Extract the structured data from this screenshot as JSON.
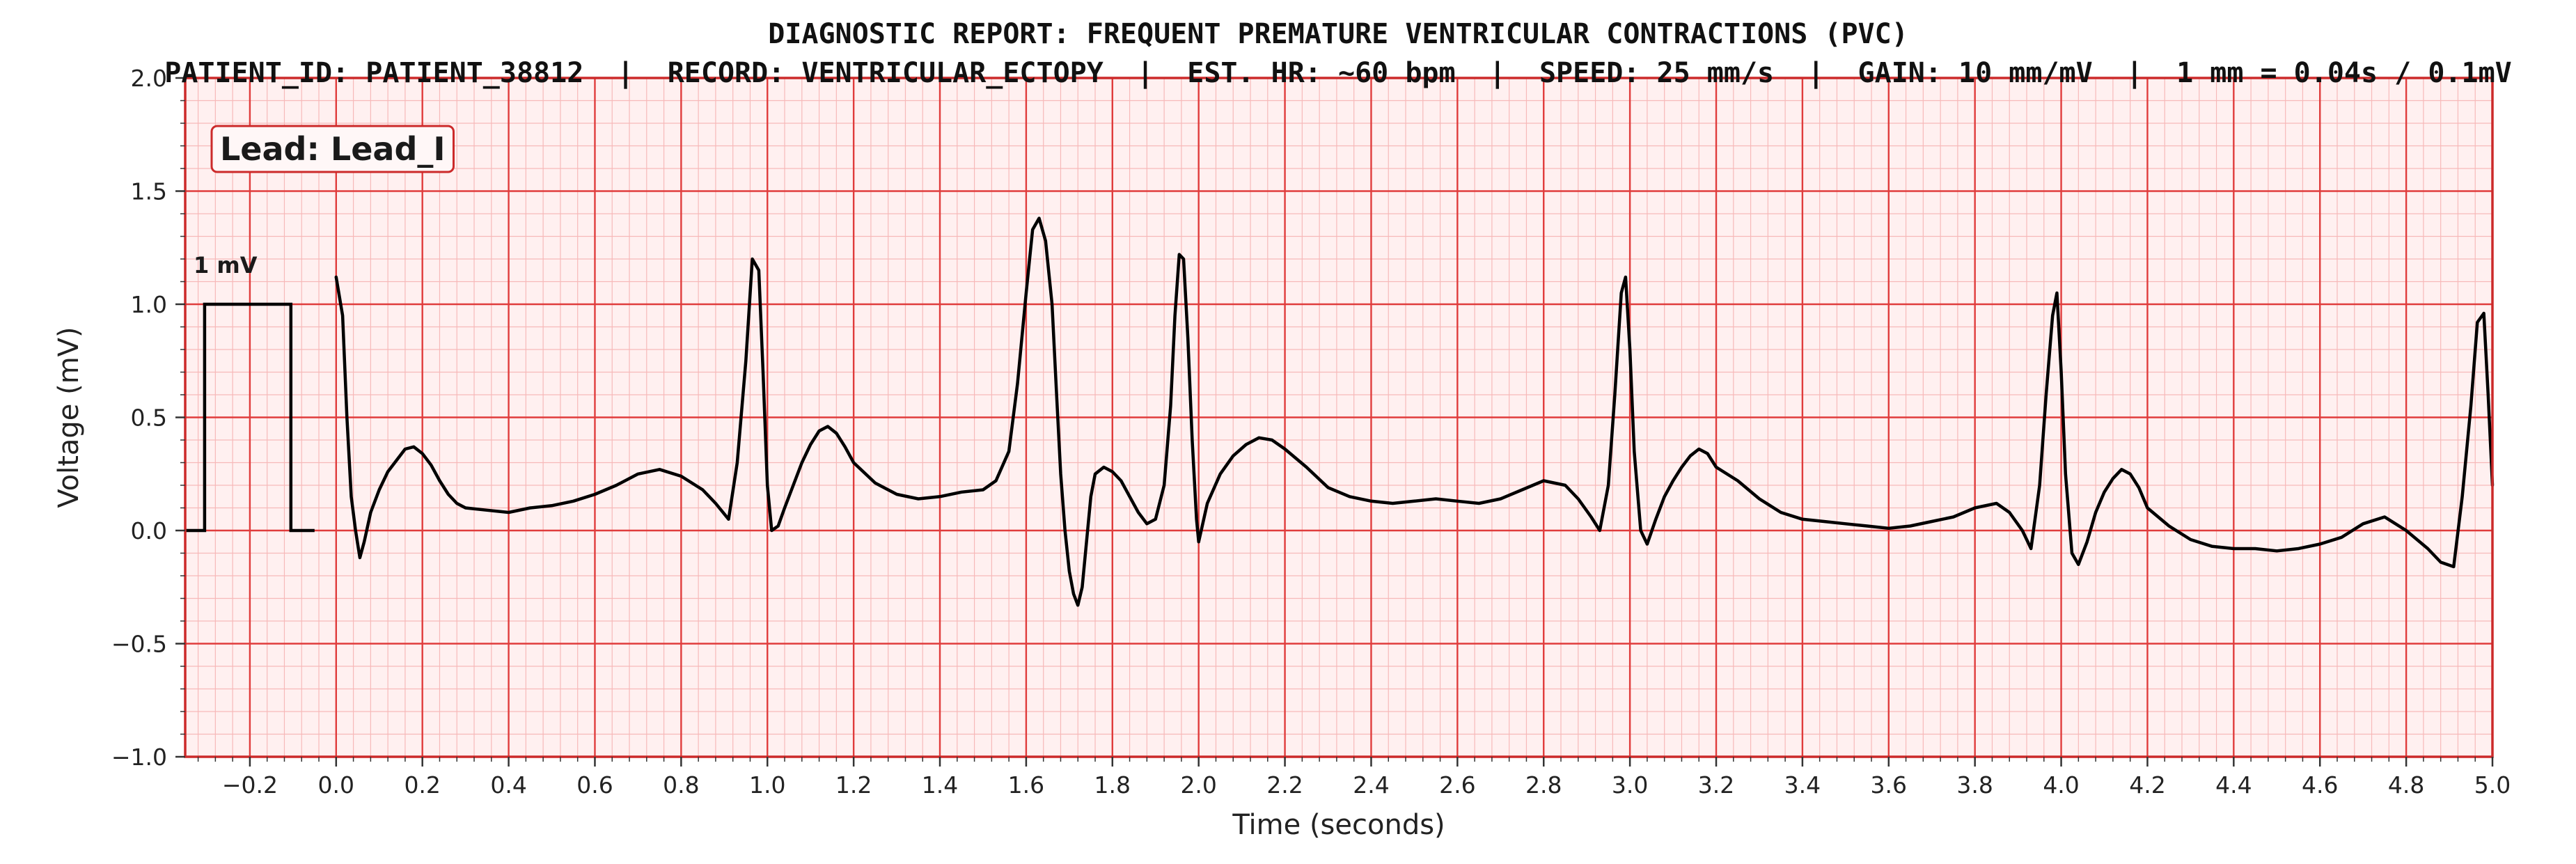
{
  "chart_data": {
    "type": "line",
    "title": "DIAGNOSTIC REPORT: FREQUENT PREMATURE VENTRICULAR CONTRACTIONS (PVC)",
    "subtitle": "PATIENT_ID: PATIENT_38812  |  RECORD: VENTRICULAR_ECTOPY  |  EST. HR: ~60 bpm  |  SPEED: 25 mm/s  |  GAIN: 10 mm/mV  |  1 mm = 0.04s / 0.1mV",
    "xlabel": "Time (seconds)",
    "ylabel": "Voltage (mV)",
    "xlim": [
      -0.35,
      5.0
    ],
    "ylim": [
      -1.0,
      2.0
    ],
    "x_ticks": [
      -0.2,
      0.0,
      0.2,
      0.4,
      0.6,
      0.8,
      1.0,
      1.2,
      1.4,
      1.6,
      1.8,
      2.0,
      2.2,
      2.4,
      2.6,
      2.8,
      3.0,
      3.2,
      3.4,
      3.6,
      3.8,
      4.0,
      4.2,
      4.4,
      4.6,
      4.8,
      5.0
    ],
    "x_tick_labels": [
      "−0.2",
      "0.0",
      "0.2",
      "0.4",
      "0.6",
      "0.8",
      "1.0",
      "1.2",
      "1.4",
      "1.6",
      "1.8",
      "2.0",
      "2.2",
      "2.4",
      "2.6",
      "2.8",
      "3.0",
      "3.2",
      "3.4",
      "3.6",
      "3.8",
      "4.0",
      "4.2",
      "4.4",
      "4.6",
      "4.8",
      "5.0"
    ],
    "y_ticks": [
      -1.0,
      -0.5,
      0.0,
      0.5,
      1.0,
      1.5,
      2.0
    ],
    "y_tick_labels": [
      "−1.0",
      "−0.5",
      "0.0",
      "0.5",
      "1.0",
      "1.5",
      "2.0"
    ],
    "grid": true,
    "lead_label": "Lead: Lead_I",
    "calibration": {
      "label": "1 mV",
      "x": [
        -0.35,
        -0.305,
        -0.305,
        -0.105,
        -0.105,
        -0.05
      ],
      "y": [
        0.0,
        0.0,
        1.0,
        1.0,
        0.0,
        0.0
      ]
    },
    "series": [
      {
        "x": [
          0.0,
          0.015,
          0.025,
          0.035,
          0.045,
          0.055,
          0.065,
          0.08,
          0.1,
          0.12,
          0.14,
          0.16,
          0.18,
          0.2,
          0.22,
          0.24,
          0.26,
          0.28,
          0.3,
          0.35,
          0.4,
          0.45,
          0.5,
          0.55,
          0.6,
          0.65,
          0.7,
          0.75,
          0.8,
          0.85,
          0.88,
          0.91,
          0.93,
          0.95,
          0.965,
          0.98,
          0.99,
          1.0,
          1.01,
          1.025,
          1.04,
          1.06,
          1.08,
          1.1,
          1.12,
          1.14,
          1.16,
          1.18,
          1.2,
          1.25,
          1.3,
          1.35,
          1.4,
          1.45,
          1.5,
          1.53,
          1.56,
          1.58,
          1.6,
          1.615,
          1.63,
          1.645,
          1.66,
          1.67,
          1.68,
          1.69,
          1.7,
          1.71,
          1.72,
          1.73,
          1.74,
          1.75,
          1.76,
          1.78,
          1.8,
          1.82,
          1.84,
          1.86,
          1.88,
          1.9,
          1.92,
          1.935,
          1.945,
          1.955,
          1.965,
          1.975,
          1.985,
          1.995,
          2.0,
          2.02,
          2.05,
          2.08,
          2.11,
          2.14,
          2.17,
          2.2,
          2.25,
          2.3,
          2.35,
          2.4,
          2.45,
          2.5,
          2.55,
          2.6,
          2.65,
          2.7,
          2.75,
          2.8,
          2.85,
          2.88,
          2.91,
          2.93,
          2.95,
          2.965,
          2.98,
          2.99,
          3.0,
          3.01,
          3.025,
          3.04,
          3.06,
          3.08,
          3.1,
          3.12,
          3.14,
          3.16,
          3.18,
          3.2,
          3.25,
          3.3,
          3.35,
          3.4,
          3.45,
          3.5,
          3.55,
          3.6,
          3.65,
          3.7,
          3.75,
          3.8,
          3.85,
          3.88,
          3.91,
          3.93,
          3.95,
          3.965,
          3.98,
          3.99,
          4.0,
          4.01,
          4.025,
          4.04,
          4.06,
          4.08,
          4.1,
          4.12,
          4.14,
          4.16,
          4.18,
          4.2,
          4.25,
          4.3,
          4.35,
          4.4,
          4.45,
          4.5,
          4.55,
          4.6,
          4.65,
          4.7,
          4.75,
          4.8,
          4.85,
          4.88,
          4.91,
          4.93,
          4.95,
          4.965,
          4.98,
          4.99,
          5.0
        ],
        "y": [
          1.12,
          0.95,
          0.5,
          0.15,
          0.0,
          -0.12,
          -0.05,
          0.08,
          0.18,
          0.26,
          0.31,
          0.36,
          0.37,
          0.34,
          0.29,
          0.22,
          0.16,
          0.12,
          0.1,
          0.09,
          0.08,
          0.1,
          0.11,
          0.13,
          0.16,
          0.2,
          0.25,
          0.27,
          0.24,
          0.18,
          0.12,
          0.05,
          0.3,
          0.75,
          1.2,
          1.15,
          0.7,
          0.2,
          0.0,
          0.02,
          0.1,
          0.2,
          0.3,
          0.38,
          0.44,
          0.46,
          0.43,
          0.37,
          0.3,
          0.21,
          0.16,
          0.14,
          0.15,
          0.17,
          0.18,
          0.22,
          0.35,
          0.65,
          1.05,
          1.33,
          1.38,
          1.28,
          1.0,
          0.62,
          0.25,
          0.0,
          -0.18,
          -0.28,
          -0.33,
          -0.25,
          -0.05,
          0.15,
          0.25,
          0.28,
          0.26,
          0.22,
          0.15,
          0.08,
          0.03,
          0.05,
          0.2,
          0.55,
          0.95,
          1.22,
          1.2,
          0.85,
          0.4,
          0.05,
          -0.05,
          0.12,
          0.25,
          0.33,
          0.38,
          0.41,
          0.4,
          0.36,
          0.28,
          0.19,
          0.15,
          0.13,
          0.12,
          0.13,
          0.14,
          0.13,
          0.12,
          0.14,
          0.18,
          0.22,
          0.2,
          0.14,
          0.06,
          0.0,
          0.2,
          0.6,
          1.05,
          1.12,
          0.8,
          0.35,
          0.0,
          -0.06,
          0.05,
          0.15,
          0.22,
          0.28,
          0.33,
          0.36,
          0.34,
          0.28,
          0.22,
          0.14,
          0.08,
          0.05,
          0.04,
          0.03,
          0.02,
          0.01,
          0.02,
          0.04,
          0.06,
          0.1,
          0.12,
          0.08,
          0.0,
          -0.08,
          0.2,
          0.6,
          0.95,
          1.05,
          0.7,
          0.25,
          -0.1,
          -0.15,
          -0.05,
          0.08,
          0.17,
          0.23,
          0.27,
          0.25,
          0.19,
          0.1,
          0.02,
          -0.04,
          -0.07,
          -0.08,
          -0.08,
          -0.09,
          -0.08,
          -0.06,
          -0.03,
          0.03,
          0.06,
          0.0,
          -0.08,
          -0.14,
          -0.16,
          0.15,
          0.55,
          0.92,
          0.96,
          0.6,
          0.2
        ]
      }
    ],
    "colors": {
      "trace": "#000000",
      "major_grid": "#e03c3c",
      "minor_grid": "#f7b9b9",
      "background": "#fff0f0",
      "frame": "#cc2a2a",
      "lead_box_edge": "#cc2a2a"
    }
  }
}
